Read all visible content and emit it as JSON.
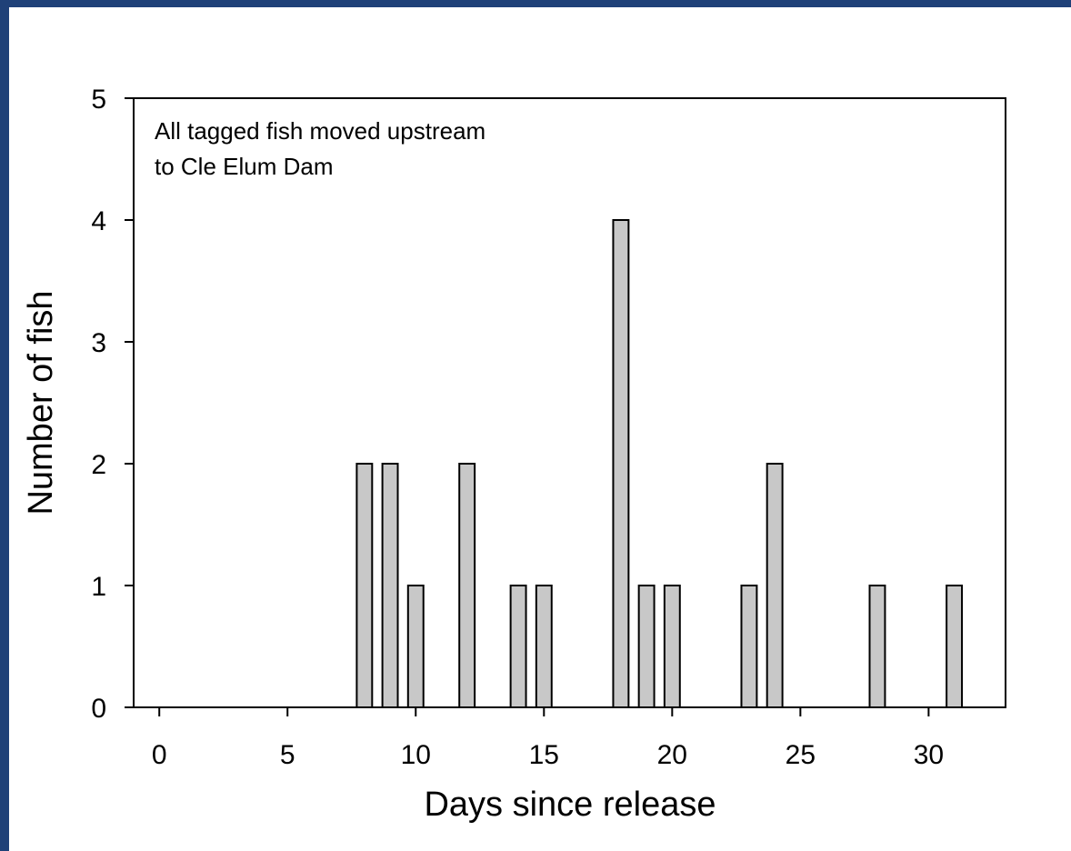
{
  "colors": {
    "background_frame": "#1f4178",
    "panel": "#ffffff",
    "bar_fill": "#c8c8c8",
    "bar_stroke": "#000000",
    "axis": "#000000"
  },
  "chart_data": {
    "type": "bar",
    "title": "",
    "xlabel": "Days since release",
    "ylabel": "Number of fish",
    "annotation": [
      "All tagged fish moved upstream",
      "to Cle Elum Dam"
    ],
    "x": [
      8,
      9,
      10,
      12,
      14,
      15,
      18,
      19,
      20,
      23,
      24,
      28,
      31
    ],
    "values": [
      2,
      2,
      1,
      2,
      1,
      1,
      4,
      1,
      1,
      1,
      2,
      1,
      1
    ],
    "xlim": [
      -1,
      33
    ],
    "ylim": [
      0,
      5
    ],
    "xticks": [
      0,
      5,
      10,
      15,
      20,
      25,
      30
    ],
    "yticks": [
      0,
      1,
      2,
      3,
      4,
      5
    ],
    "bar_width": 0.6,
    "grid": false,
    "legend": "none"
  }
}
